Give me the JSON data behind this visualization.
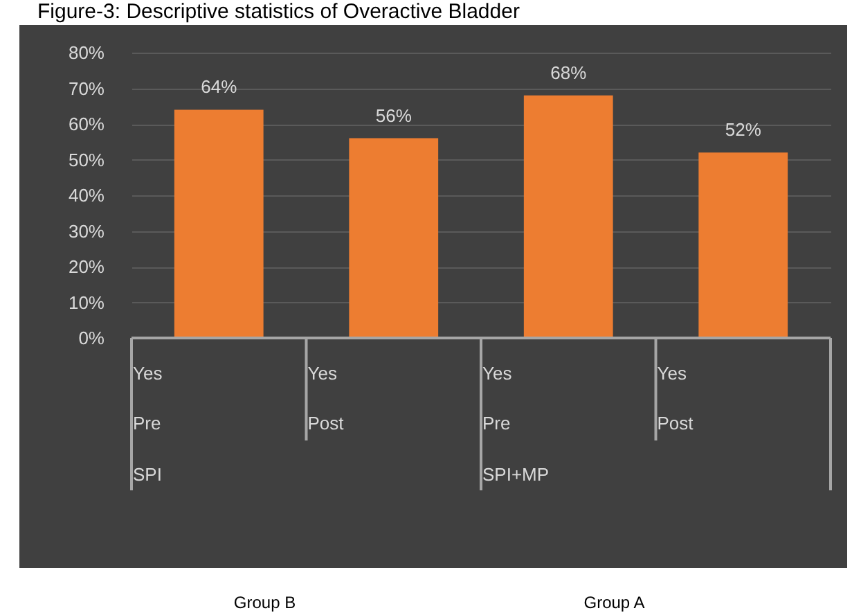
{
  "chart_data": {
    "type": "bar",
    "title": "Figure-3: Descriptive statistics of Overactive Bladder",
    "categories": [
      "Yes",
      "Yes",
      "Yes",
      "Yes"
    ],
    "values": [
      64,
      56,
      68,
      52
    ],
    "color": "#ed7d31",
    "value_labels": [
      "64%",
      "56%",
      "68%",
      "52%"
    ],
    "ylim": [
      0,
      80
    ],
    "yticks": [
      {
        "value": 0,
        "label": "0%"
      },
      {
        "value": 10,
        "label": "10%"
      },
      {
        "value": 20,
        "label": "20%"
      },
      {
        "value": 30,
        "label": "30%"
      },
      {
        "value": 40,
        "label": "40%"
      },
      {
        "value": 50,
        "label": "50%"
      },
      {
        "value": 60,
        "label": "60%"
      },
      {
        "value": 70,
        "label": "70%"
      },
      {
        "value": 80,
        "label": "80%"
      }
    ],
    "grid": "y",
    "annotations": [
      "Pre",
      "Post",
      "Pre",
      "Post",
      "SPI",
      "SPI+MP",
      "Group B",
      "Group A"
    ]
  }
}
